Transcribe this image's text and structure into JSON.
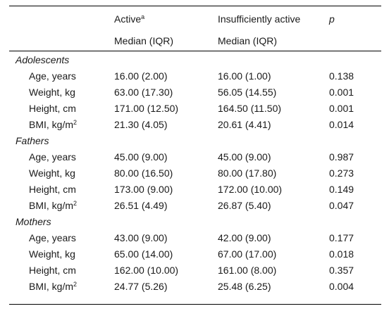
{
  "header": {
    "col1_label": "Active",
    "col1_sup": "a",
    "col1_sub": "Median (IQR)",
    "col2_label": "Insufficiently active",
    "col2_sub": "Median (IQR)",
    "col3_label": "p"
  },
  "groups": [
    {
      "title": "Adolescents",
      "rows": [
        {
          "label": "Age, years",
          "sup": "",
          "active": "16.00 (2.00)",
          "insufficient": "16.00 (1.00)",
          "p": "0.138"
        },
        {
          "label": "Weight, kg",
          "sup": "",
          "active": "63.00 (17.30)",
          "insufficient": "56.05 (14.55)",
          "p": "0.001"
        },
        {
          "label": "Height, cm",
          "sup": "",
          "active": "171.00 (12.50)",
          "insufficient": "164.50 (11.50)",
          "p": "0.001"
        },
        {
          "label": "BMI, kg/m",
          "sup": "2",
          "active": "21.30 (4.05)",
          "insufficient": "20.61 (4.41)",
          "p": "0.014"
        }
      ]
    },
    {
      "title": "Fathers",
      "rows": [
        {
          "label": "Age, years",
          "sup": "",
          "active": "45.00 (9.00)",
          "insufficient": "45.00 (9.00)",
          "p": "0.987"
        },
        {
          "label": "Weight, kg",
          "sup": "",
          "active": "80.00 (16.50)",
          "insufficient": "80.00 (17.80)",
          "p": "0.273"
        },
        {
          "label": "Height, cm",
          "sup": "",
          "active": "173.00 (9.00)",
          "insufficient": "172.00 (10.00)",
          "p": "0.149"
        },
        {
          "label": "BMI, kg/m",
          "sup": "2",
          "active": "26.51 (4.49)",
          "insufficient": "26.87 (5.40)",
          "p": "0.047"
        }
      ]
    },
    {
      "title": "Mothers",
      "rows": [
        {
          "label": "Age, years",
          "sup": "",
          "active": "43.00 (9.00)",
          "insufficient": "42.00 (9.00)",
          "p": "0.177"
        },
        {
          "label": "Weight, kg",
          "sup": "",
          "active": "65.00 (14.00)",
          "insufficient": "67.00 (17.00)",
          "p": "0.018"
        },
        {
          "label": "Height, cm",
          "sup": "",
          "active": "162.00 (10.00)",
          "insufficient": "161.00 (8.00)",
          "p": "0.357"
        },
        {
          "label": "BMI, kg/m",
          "sup": "2",
          "active": "24.77 (5.26)",
          "insufficient": "25.48 (6.25)",
          "p": "0.004"
        }
      ]
    }
  ]
}
